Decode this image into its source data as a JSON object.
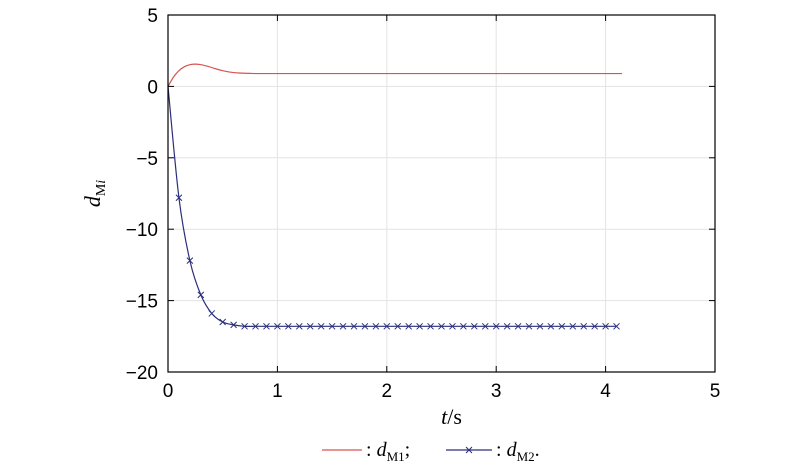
{
  "chart_data": {
    "type": "line",
    "title": "",
    "xlabel": {
      "var": "t",
      "unit": "/s"
    },
    "ylabel": {
      "var": "d",
      "sub": "M",
      "sub_italic": "i"
    },
    "xlim": [
      0,
      5
    ],
    "ylim": [
      -20,
      5
    ],
    "xticks": [
      0,
      1,
      2,
      3,
      4,
      5
    ],
    "yticks": [
      5,
      0,
      -5,
      -10,
      -15,
      -20
    ],
    "xtick_labels": [
      "0",
      "1",
      "2",
      "3",
      "4",
      "5"
    ],
    "ytick_labels": [
      "5",
      "0",
      "−5",
      "−10",
      "−15",
      "−20"
    ],
    "grid": true,
    "legend_placement": "bottom-center",
    "series": [
      {
        "name": "dM1",
        "legend": {
          "prefix": ": ",
          "var": "d",
          "sub": "M1",
          "suffix": ";"
        },
        "color": "#d9534f",
        "marker": "none",
        "x": [
          0,
          0.05,
          0.1,
          0.15,
          0.2,
          0.25,
          0.3,
          0.35,
          0.4,
          0.45,
          0.5,
          0.55,
          0.6,
          0.65,
          0.7,
          0.75,
          0.8,
          0.9,
          1.0,
          1.5,
          2.0,
          2.5,
          3.0,
          3.5,
          4.0,
          4.15
        ],
        "y": [
          0,
          0.65,
          1.1,
          1.38,
          1.52,
          1.56,
          1.52,
          1.43,
          1.32,
          1.2,
          1.1,
          1.02,
          0.97,
          0.94,
          0.92,
          0.91,
          0.9,
          0.9,
          0.9,
          0.9,
          0.9,
          0.9,
          0.9,
          0.9,
          0.9,
          0.9
        ]
      },
      {
        "name": "dM2",
        "legend": {
          "prefix": ": ",
          "var": "d",
          "sub": "M2",
          "suffix": "."
        },
        "color": "#2b2f7a",
        "marker": "x",
        "x": [
          0,
          0.1,
          0.2,
          0.3,
          0.4,
          0.5,
          0.6,
          0.7,
          0.8,
          0.9,
          1.0,
          1.1,
          1.2,
          1.3,
          1.4,
          1.5,
          1.6,
          1.7,
          1.8,
          1.9,
          2.0,
          2.1,
          2.2,
          2.3,
          2.4,
          2.5,
          2.6,
          2.7,
          2.8,
          2.9,
          3.0,
          3.1,
          3.2,
          3.3,
          3.4,
          3.5,
          3.6,
          3.7,
          3.8,
          3.9,
          4.0,
          4.1
        ],
        "y": [
          0,
          -7.8,
          -12.2,
          -14.6,
          -15.9,
          -16.5,
          -16.7,
          -16.8,
          -16.8,
          -16.8,
          -16.8,
          -16.8,
          -16.8,
          -16.8,
          -16.8,
          -16.8,
          -16.8,
          -16.8,
          -16.8,
          -16.8,
          -16.8,
          -16.8,
          -16.8,
          -16.8,
          -16.8,
          -16.8,
          -16.8,
          -16.8,
          -16.8,
          -16.8,
          -16.8,
          -16.8,
          -16.8,
          -16.8,
          -16.8,
          -16.8,
          -16.8,
          -16.8,
          -16.8,
          -16.8,
          -16.8,
          -16.8
        ]
      }
    ]
  }
}
